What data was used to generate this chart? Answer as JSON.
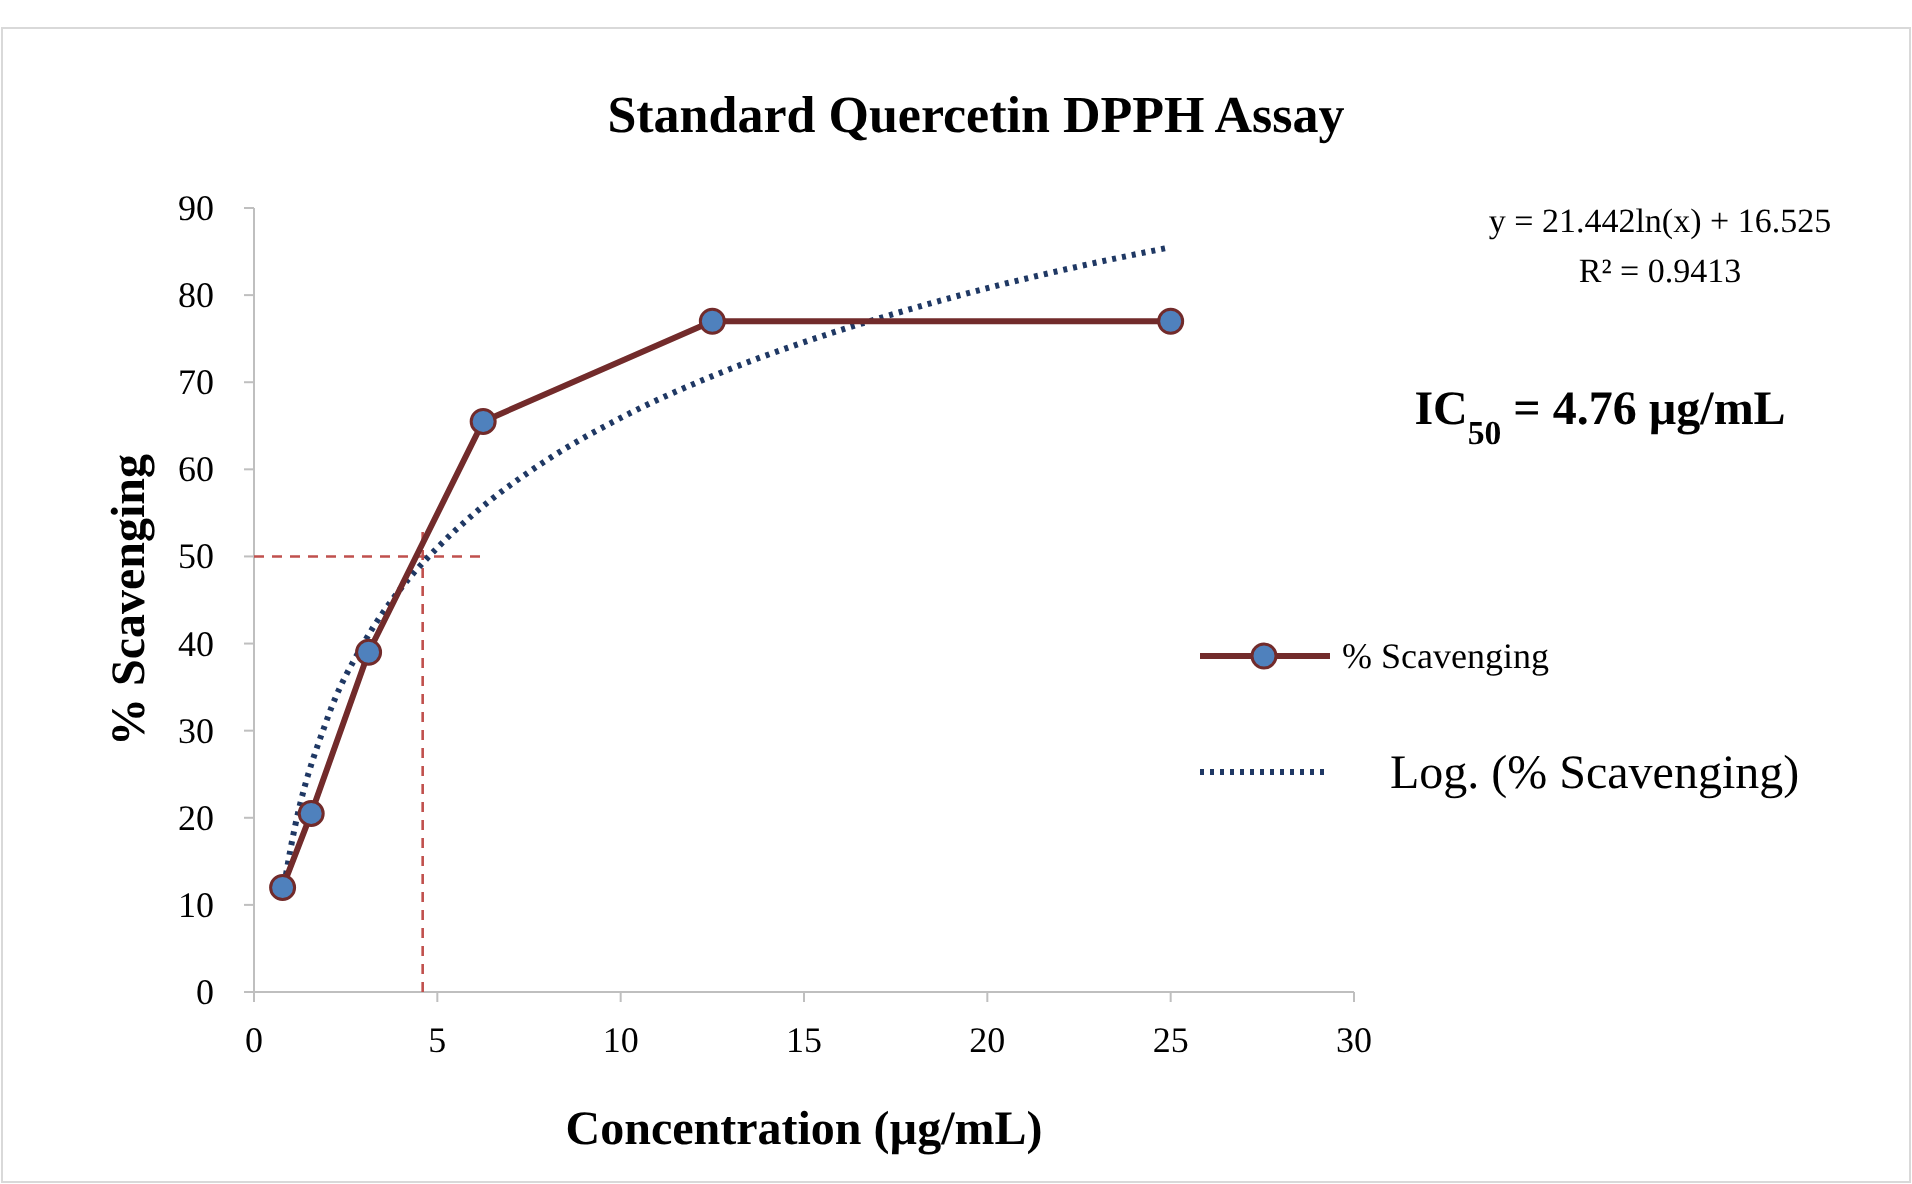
{
  "chart_data": {
    "type": "line",
    "title": "Standard Quercetin DPPH Assay",
    "xlabel": "Concentration (µg/mL)",
    "ylabel": "% Scavenging",
    "xlim": [
      0,
      30
    ],
    "xticks": [
      0,
      5,
      10,
      15,
      20,
      25,
      30
    ],
    "ylim": [
      0,
      90
    ],
    "yticks": [
      0,
      10,
      20,
      30,
      40,
      50,
      60,
      70,
      80,
      90
    ],
    "grid": false,
    "legend": "right",
    "series": [
      {
        "name": "% Scavenging",
        "color": "#722b2b",
        "marker": "circle",
        "line_style": "solid",
        "x": [
          0.78,
          1.56,
          3.125,
          6.25,
          12.5,
          25
        ],
        "values": [
          12,
          20.5,
          39,
          65.5,
          77,
          77
        ]
      },
      {
        "name": "Log. (% Scavenging)",
        "color": "#1f3864",
        "marker": "none",
        "line_style": "dotted",
        "x": [
          0.78,
          1,
          2,
          3,
          4,
          5,
          6,
          8,
          10,
          12.5,
          15,
          17.5,
          20,
          22.5,
          25
        ],
        "values": [
          11.2,
          16.5,
          31.4,
          40.1,
          46.3,
          51,
          54.9,
          61.1,
          65.9,
          70.7,
          74.6,
          77.9,
          80.8,
          83.3,
          85.5
        ]
      }
    ],
    "ref_lines": [
      {
        "axis": "y",
        "value": 50,
        "color": "#c0504d",
        "line_style": "dashed"
      },
      {
        "axis": "x",
        "value": 4.6,
        "color": "#c0504d",
        "line_style": "dashed"
      }
    ],
    "annotations": [
      "y = 21.442ln(x) + 16.525",
      "R² = 0.9413",
      "IC$_{50}$ = 4.76 µg/mL"
    ]
  }
}
